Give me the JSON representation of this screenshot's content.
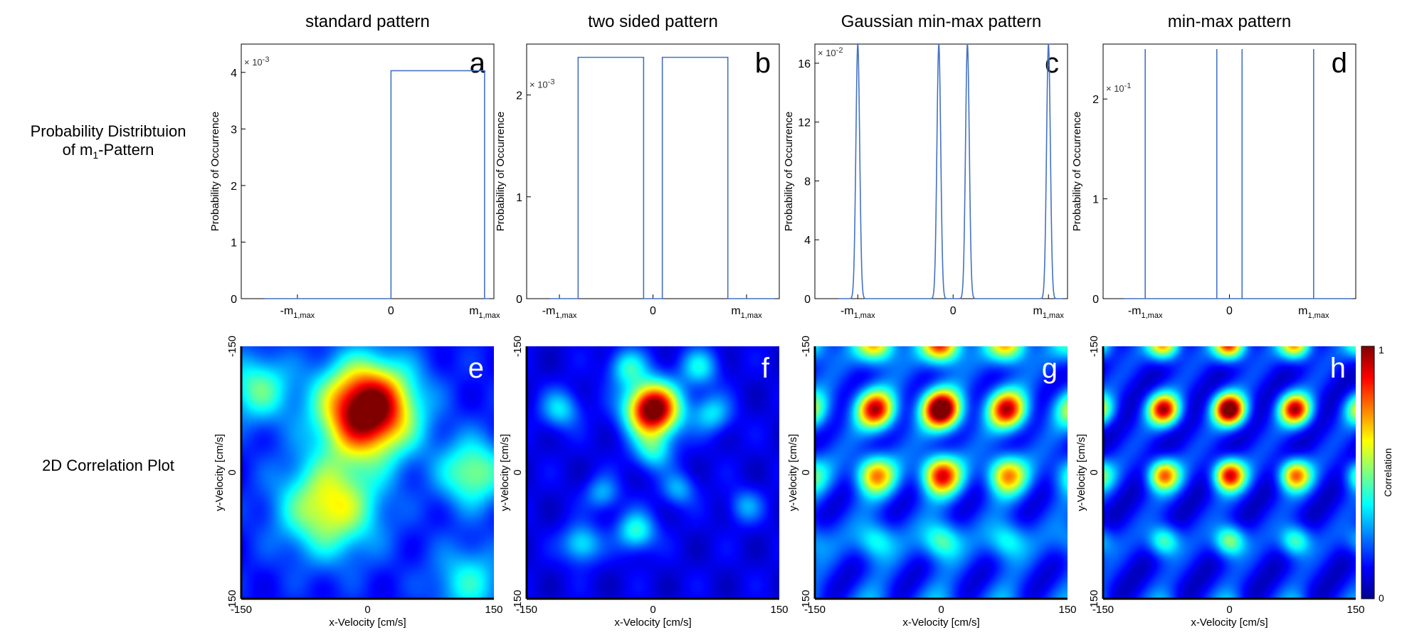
{
  "row_labels": {
    "top_line1": "Probability Distribtuion",
    "top_line2_prefix": "of m",
    "top_line2_sub": "1",
    "top_line2_suffix": "-Pattern",
    "bottom": "2D Correlation Plot"
  },
  "chart_data": [
    {
      "type": "line",
      "panel": "a",
      "title": "standard pattern",
      "ylabel": "Probability of Occurrence",
      "exponent_label": "× 10",
      "exponent_power": "-3",
      "yticks": [
        "0",
        "1",
        "2",
        "3",
        "4"
      ],
      "ytick_values": [
        0,
        1,
        2,
        3,
        4
      ],
      "ylim": [
        0,
        4.5
      ],
      "xlim": [
        -1.6,
        1.1
      ],
      "xtick_values": [
        -1,
        0,
        1
      ],
      "xtick_main": [
        "-m",
        "0",
        "m"
      ],
      "xtick_sub": [
        "1,max",
        "",
        "1,max"
      ],
      "shape": "box",
      "boxes": [
        [
          0,
          1
        ]
      ],
      "box_height": 4.03,
      "line_color": "#4472c4"
    },
    {
      "type": "line",
      "panel": "b",
      "title": "two sided pattern",
      "ylabel": "Probability of Occurrence",
      "exponent_label": "× 10",
      "exponent_power": "-3",
      "yticks": [
        "0",
        "1",
        "2"
      ],
      "ytick_values": [
        0,
        1,
        2
      ],
      "ylim": [
        0,
        2.5
      ],
      "xlim": [
        -1.35,
        1.35
      ],
      "xtick_values": [
        -1,
        0,
        1
      ],
      "xtick_main": [
        "-m",
        "0",
        "m"
      ],
      "xtick_sub": [
        "1,max",
        "",
        "1,max"
      ],
      "shape": "box",
      "boxes": [
        [
          -0.8,
          -0.1
        ],
        [
          0.1,
          0.8
        ]
      ],
      "box_height": 2.37,
      "line_color": "#4472c4"
    },
    {
      "type": "line",
      "panel": "c",
      "title": "Gaussian min-max pattern",
      "ylabel": "Probability of Occurrence",
      "exponent_label": "× 10",
      "exponent_power": "-2",
      "yticks": [
        "0",
        "4",
        "8",
        "12",
        "16"
      ],
      "ytick_values": [
        0,
        4,
        8,
        12,
        16
      ],
      "ylim": [
        0,
        17.3
      ],
      "xlim": [
        -1.45,
        1.2
      ],
      "xtick_values": [
        -1,
        0,
        1
      ],
      "xtick_main": [
        "-m",
        "0",
        "m"
      ],
      "xtick_sub": [
        "1,max",
        "",
        "1,max"
      ],
      "shape": "gauss",
      "peaks": [
        -1,
        -0.15,
        0.15,
        1
      ],
      "peak_height": 17.3,
      "sigma": 0.02,
      "line_color": "#4472c4"
    },
    {
      "type": "line",
      "panel": "d",
      "title": "min-max pattern",
      "ylabel": "Probability of Occurrence",
      "exponent_label": "× 10",
      "exponent_power": "-1",
      "yticks": [
        "0",
        "1",
        "2"
      ],
      "ytick_values": [
        0,
        1,
        2
      ],
      "ylim": [
        0,
        2.55
      ],
      "xlim": [
        -1.5,
        1.5
      ],
      "xtick_values": [
        -1,
        0,
        1
      ],
      "xtick_main": [
        "-m",
        "0",
        "m"
      ],
      "xtick_sub": [
        "1,max",
        "",
        "1,max"
      ],
      "shape": "spike",
      "peaks": [
        -1,
        -0.15,
        0.15,
        1
      ],
      "peak_height": 2.5,
      "line_color": "#4472c4"
    },
    {
      "type": "heatmap",
      "panel": "e",
      "xlabel": "x-Velocity [cm/s]",
      "ylabel": "y-Velocity [cm/s]",
      "xticks": [
        "-150",
        "0",
        "150"
      ],
      "yticks": [
        "-150",
        "0",
        "150"
      ],
      "xlim": [
        -150,
        150
      ],
      "ylim": [
        -150,
        150
      ],
      "peaks": [
        [
          0,
          -75,
          1.0,
          38
        ],
        [
          -45,
          40,
          0.5,
          40
        ],
        [
          125,
          0,
          0.38,
          28
        ],
        [
          -130,
          -100,
          0.32,
          28
        ],
        [
          120,
          130,
          0.25,
          30
        ]
      ],
      "base": 0.1
    },
    {
      "type": "heatmap",
      "panel": "f",
      "xlabel": "x-Velocity [cm/s]",
      "ylabel": "y-Velocity [cm/s]",
      "xticks": [
        "-150",
        "0",
        "150"
      ],
      "yticks": [
        "-150",
        "0",
        "150"
      ],
      "xlim": [
        -150,
        150
      ],
      "ylim": [
        -150,
        150
      ],
      "peaks": [
        [
          0,
          -75,
          1.0,
          22
        ],
        [
          -20,
          70,
          0.32,
          16
        ],
        [
          -85,
          85,
          0.28,
          16
        ],
        [
          0,
          -25,
          0.26,
          16
        ],
        [
          -110,
          -75,
          0.25,
          16
        ],
        [
          70,
          -70,
          0.25,
          16
        ],
        [
          -30,
          -125,
          0.28,
          16
        ],
        [
          55,
          -125,
          0.26,
          16
        ],
        [
          30,
          20,
          0.2,
          14
        ],
        [
          -60,
          25,
          0.2,
          14
        ],
        [
          110,
          40,
          0.18,
          14
        ]
      ],
      "base": 0.06
    },
    {
      "type": "heatmap",
      "panel": "g",
      "xlabel": "x-Velocity [cm/s]",
      "ylabel": "y-Velocity [cm/s]",
      "xticks": [
        "-150",
        "0",
        "150"
      ],
      "yticks": [
        "-150",
        "0",
        "150"
      ],
      "xlim": [
        -150,
        150
      ],
      "ylim": [
        -150,
        150
      ],
      "lattice": {
        "spacing": 78,
        "offset_x": 0,
        "offset_y": -75,
        "center_value": 0.98,
        "falloff": 0.0018,
        "sigma": 16
      },
      "base": 0.08
    },
    {
      "type": "heatmap",
      "panel": "h",
      "xlabel": "x-Velocity [cm/s]",
      "ylabel": "y-Velocity [cm/s]",
      "xticks": [
        "-150",
        "0",
        "150"
      ],
      "yticks": [
        "-150",
        "0",
        "150"
      ],
      "xlim": [
        -150,
        150
      ],
      "ylim": [
        -150,
        150
      ],
      "lattice": {
        "spacing": 78,
        "offset_x": 0,
        "offset_y": -75,
        "center_value": 0.96,
        "falloff": 0.0014,
        "sigma": 13
      },
      "base": 0.06,
      "colorbar": {
        "label": "Correlation",
        "min": "0",
        "max": "1"
      }
    }
  ]
}
